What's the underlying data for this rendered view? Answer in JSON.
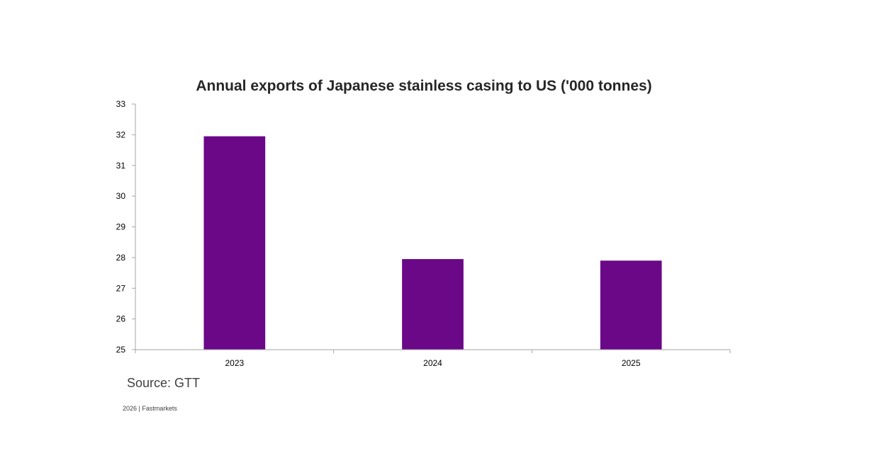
{
  "chart_data": {
    "type": "bar",
    "title": "Annual exports of Japanese stainless casing to US ('000 tonnes)",
    "categories": [
      "2023",
      "2024",
      "2025"
    ],
    "values": [
      31.95,
      27.95,
      27.9
    ],
    "ylim": [
      25,
      33
    ],
    "yticks": [
      25,
      26,
      27,
      28,
      29,
      30,
      31,
      32,
      33
    ],
    "xlabel": "",
    "ylabel": "",
    "grid": false,
    "legend": "none",
    "bar_color": "#6a0888"
  },
  "source": "Source: GTT",
  "footer": "2026  |  Fastmarkets"
}
